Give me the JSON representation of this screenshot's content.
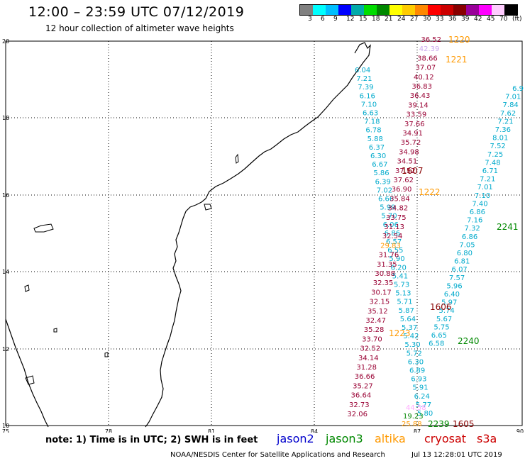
{
  "header": {
    "title": "12:00 – 23:59 UTC 07/12/2019",
    "subtitle": "12 hour collection of altimeter wave heights"
  },
  "colorbar": {
    "colors": [
      "#808080",
      "#00ffff",
      "#00bfff",
      "#0000ff",
      "#00aaaa",
      "#00dd00",
      "#008800",
      "#ffff00",
      "#ffcc00",
      "#ff8800",
      "#ff0000",
      "#cc0000",
      "#880000",
      "#990099",
      "#ff00ff",
      "#ffccff",
      "#000000"
    ],
    "labels": [
      "3",
      "6",
      "9",
      "12",
      "15",
      "18",
      "21",
      "24",
      "27",
      "30",
      "33",
      "36",
      "39",
      "42",
      "45",
      "70",
      "(ft)"
    ]
  },
  "map": {
    "lon_ticks": [
      "75",
      "78",
      "81",
      "84",
      "87",
      "90"
    ],
    "lat_ticks": [
      "20",
      "18",
      "16",
      "14",
      "12",
      "10"
    ]
  },
  "tracks": {
    "jason2_color": "#0000cc",
    "jason3_color": "#008800",
    "altika_color": "#ff9900",
    "cryosat_color": "#cc0000",
    "s3a_color": "#cc0000",
    "track_a": {
      "color": "#00aacc",
      "values": [
        "6.04",
        "7.21",
        "7.39",
        "6.16",
        "7.10",
        "6.63",
        "7.18",
        "6.78",
        "5.88",
        "6.37",
        "6.30",
        "6.67",
        "5.86",
        "6.39",
        "7.02",
        "6.66",
        "5.99",
        "5.70",
        "6.06",
        "6.86",
        "6.57",
        "6.55",
        "5.90",
        "6.20",
        "5.41",
        "5.73",
        "5.13",
        "5.71",
        "5.87",
        "5.64",
        "5.37",
        "5.42",
        "5.30",
        "5.72",
        "6.30",
        "6.89",
        "6.93",
        "5.91",
        "6.24",
        "5.77",
        "5.80"
      ]
    },
    "track_b": {
      "color": "#990033",
      "values": [
        "36.52",
        "42.39",
        "38.66",
        "37.07",
        "40.12",
        "36.83",
        "36.43",
        "39.14",
        "33.59",
        "37.66",
        "34.91",
        "35.72",
        "34.98",
        "34.51",
        "37.52",
        "37.62",
        "36.90",
        "35.84",
        "34.82",
        "33.75",
        "31.13",
        "32.54",
        "29.83",
        "31.76",
        "31.35",
        "30.88",
        "32.35",
        "30.17",
        "32.15",
        "35.12",
        "32.47",
        "35.28",
        "33.70",
        "32.52",
        "34.14",
        "31.28",
        "36.66",
        "35.27",
        "36.64",
        "32.73",
        "32.06"
      ]
    },
    "track_c": {
      "color": "#00aacc",
      "values": [
        "6.9",
        "7.01",
        "7.84",
        "7.62",
        "7.21",
        "7.36",
        "8.01",
        "7.52",
        "7.25",
        "7.48",
        "6.71",
        "7.21",
        "7.01",
        "7.10",
        "7.40",
        "6.86",
        "7.16",
        "7.32",
        "6.86",
        "7.05",
        "6.80",
        "6.81",
        "6.07",
        "7.57",
        "5.96",
        "6.40",
        "5.97",
        "5.74",
        "5.67",
        "5.75",
        "6.65",
        "6.58"
      ]
    },
    "labels": [
      {
        "text": "1220",
        "color": "#ff9900"
      },
      {
        "text": "1221",
        "color": "#ff9900"
      },
      {
        "text": "1607",
        "color": "#880000"
      },
      {
        "text": "1222",
        "color": "#ff9900"
      },
      {
        "text": "2241",
        "color": "#008800"
      },
      {
        "text": "1606",
        "color": "#880000"
      },
      {
        "text": "1223",
        "color": "#ff9900"
      },
      {
        "text": "2240",
        "color": "#008800"
      },
      {
        "text": "2239",
        "color": "#008800"
      },
      {
        "text": "1605",
        "color": "#880000"
      }
    ],
    "bottom_extra": [
      {
        "text": "19.23",
        "color": "#008800"
      },
      {
        "text": "44.58",
        "color": "#ffaaff"
      },
      {
        "text": "25.88",
        "color": "#ff9900"
      }
    ]
  },
  "footer": {
    "note": "note: 1) Time is in UTC; 2) SWH is in feet",
    "legend": [
      "jason2",
      "jason3",
      "altika",
      "cryosat",
      "s3a"
    ],
    "credit": "NOAA/NESDIS Center for Satellite Applications and Research",
    "timestamp": "Jul 13 12:28:01 UTC 2019"
  }
}
